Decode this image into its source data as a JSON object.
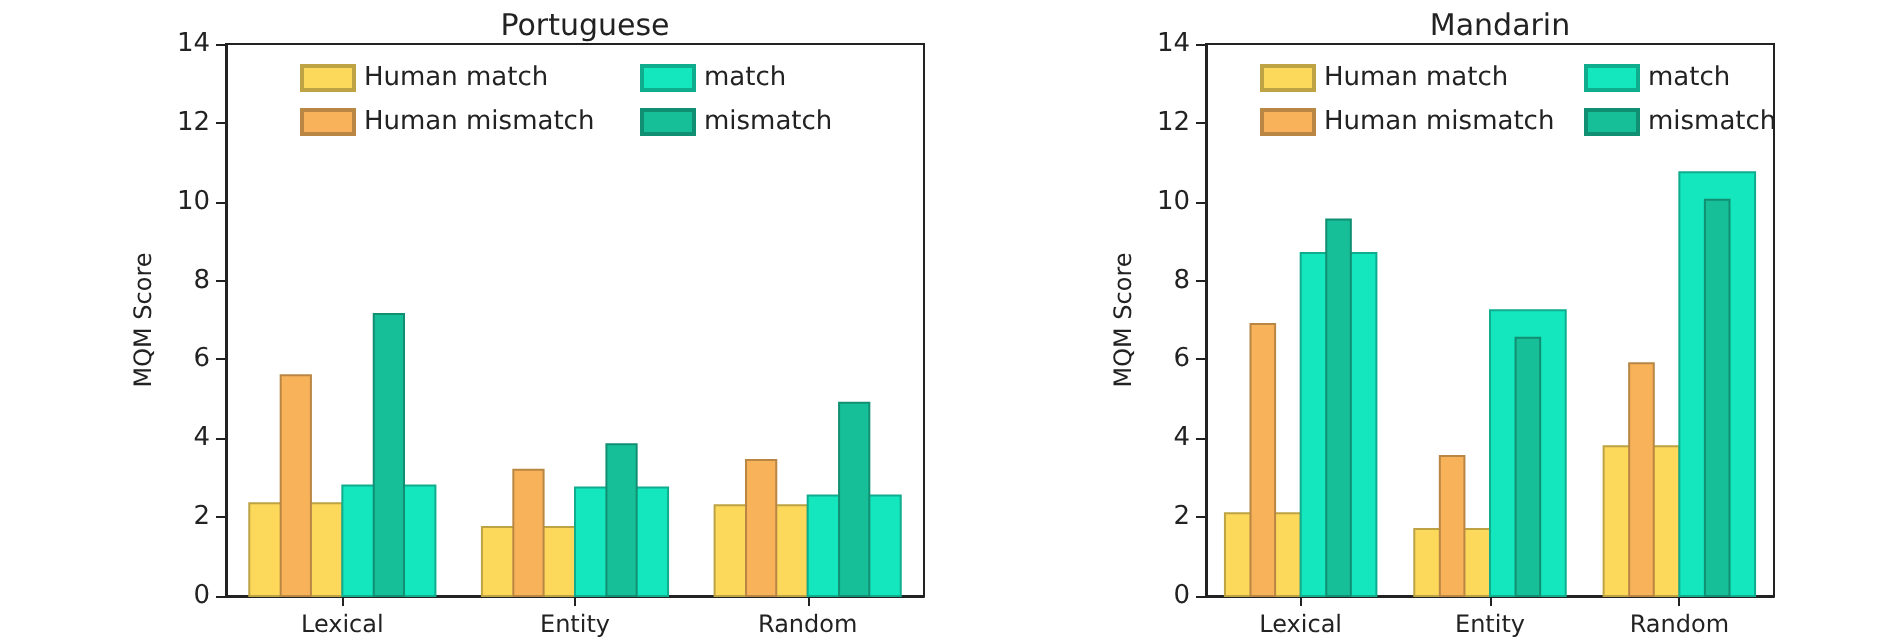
{
  "chart_data": [
    {
      "type": "bar",
      "title": "Portuguese",
      "ylabel": "MQM Score",
      "categories": [
        "Lexical",
        "Entity",
        "Random"
      ],
      "ylim": [
        0,
        14
      ],
      "yticks": [
        0,
        2,
        4,
        6,
        8,
        10,
        12,
        14
      ],
      "grid": false,
      "legend": "top",
      "series": [
        {
          "name": "Human match",
          "color": "#fcd95a",
          "values": [
            2.35,
            1.75,
            2.3
          ]
        },
        {
          "name": "Human mismatch",
          "color": "#f7b25a",
          "values": [
            5.6,
            3.2,
            3.45
          ]
        },
        {
          "name": "match",
          "color": "#14e6bd",
          "values": [
            2.8,
            2.75,
            2.55
          ]
        },
        {
          "name": "mismatch",
          "color": "#17bf99",
          "values": [
            7.15,
            3.85,
            4.9
          ]
        }
      ]
    },
    {
      "type": "bar",
      "title": "Mandarin",
      "ylabel": "MQM Score",
      "categories": [
        "Lexical",
        "Entity",
        "Random"
      ],
      "ylim": [
        0,
        14
      ],
      "yticks": [
        0,
        2,
        4,
        6,
        8,
        10,
        12,
        14
      ],
      "grid": false,
      "legend": "top",
      "series": [
        {
          "name": "Human match",
          "color": "#fcd95a",
          "values": [
            2.1,
            1.7,
            3.8
          ]
        },
        {
          "name": "Human mismatch",
          "color": "#f7b25a",
          "values": [
            6.9,
            3.55,
            5.9
          ]
        },
        {
          "name": "match",
          "color": "#14e6bd",
          "values": [
            8.7,
            7.25,
            10.75
          ]
        },
        {
          "name": "mismatch",
          "color": "#17bf99",
          "values": [
            9.55,
            6.55,
            10.05
          ]
        }
      ]
    }
  ]
}
